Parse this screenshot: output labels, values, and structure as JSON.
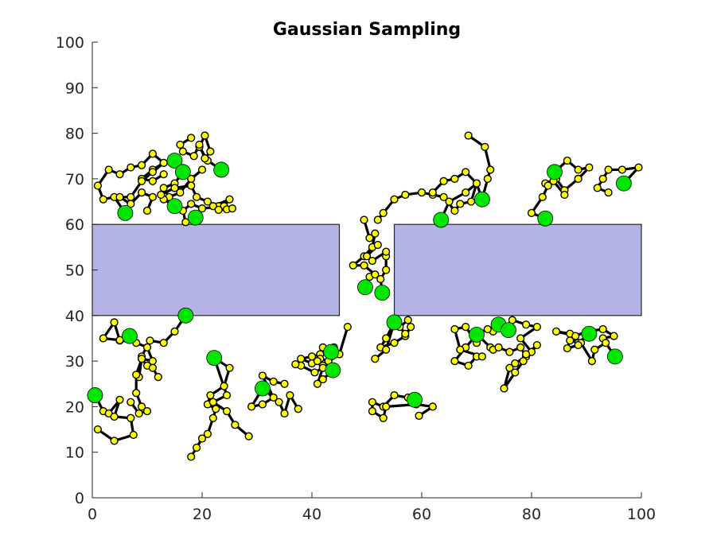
{
  "chart_data": {
    "type": "scatter",
    "title": "Gaussian Sampling",
    "xlabel": "",
    "ylabel": "",
    "xlim": [
      0,
      100
    ],
    "ylim": [
      0,
      100
    ],
    "x_ticks": [
      "0",
      "20",
      "40",
      "60",
      "80",
      "100"
    ],
    "y_ticks": [
      "0",
      "10",
      "20",
      "30",
      "40",
      "50",
      "60",
      "70",
      "80",
      "90",
      "100"
    ],
    "grid": false,
    "colors": {
      "obstacle_fill": "#b3b3e6",
      "obstacle_edge": "#262626",
      "path": "#000000",
      "sample": "#ffff00",
      "seed": "#00e600"
    },
    "obstacles": [
      {
        "x": [
          0,
          45
        ],
        "y": [
          40,
          60
        ]
      },
      {
        "x": [
          55,
          100
        ],
        "y": [
          40,
          60
        ]
      }
    ],
    "seed_points": [
      [
        15,
        74
      ],
      [
        16.5,
        71.5
      ],
      [
        23.5,
        72
      ],
      [
        6,
        62.5
      ],
      [
        15,
        64
      ],
      [
        18.8,
        61.5
      ],
      [
        0.5,
        22.5
      ],
      [
        6.8,
        35.5
      ],
      [
        17,
        40
      ],
      [
        22.2,
        30.7
      ],
      [
        31,
        24
      ],
      [
        43.5,
        32
      ],
      [
        43.8,
        28
      ],
      [
        49.7,
        46.2
      ],
      [
        52.8,
        45
      ],
      [
        55,
        38.5
      ],
      [
        58.7,
        21.5
      ],
      [
        63.5,
        61
      ],
      [
        71,
        65.5
      ],
      [
        70,
        35.8
      ],
      [
        74,
        38
      ],
      [
        75.8,
        36.8
      ],
      [
        84.2,
        71.5
      ],
      [
        82.5,
        61.3
      ],
      [
        96.8,
        69
      ],
      [
        90.5,
        36
      ],
      [
        95.2,
        31
      ]
    ],
    "paths": [
      [
        [
          15,
          74
        ],
        [
          13,
          73.5
        ],
        [
          11,
          72
        ],
        [
          9,
          70
        ],
        [
          11,
          69.5
        ],
        [
          13,
          71
        ]
      ],
      [
        [
          16.5,
          71.5
        ],
        [
          15,
          69
        ],
        [
          13,
          68
        ],
        [
          14,
          66
        ],
        [
          16,
          67
        ],
        [
          18,
          70
        ],
        [
          20,
          72
        ]
      ],
      [
        [
          23.5,
          72
        ],
        [
          21,
          74
        ],
        [
          19.5,
          77
        ],
        [
          20.5,
          79.5
        ],
        [
          21.5,
          76
        ],
        [
          20.5,
          74.5
        ],
        [
          19.5,
          77.5
        ],
        [
          18.5,
          75
        ],
        [
          16.5,
          76
        ],
        [
          16,
          77.5
        ],
        [
          18,
          79
        ]
      ],
      [
        [
          6,
          62.5
        ],
        [
          4,
          66
        ],
        [
          2,
          65.5
        ],
        [
          1,
          68.5
        ],
        [
          3,
          72
        ],
        [
          5,
          71
        ],
        [
          7,
          72.5
        ],
        [
          9,
          73
        ],
        [
          11,
          75.5
        ],
        [
          13,
          73.5
        ],
        [
          11,
          71.5
        ],
        [
          9,
          69.5
        ],
        [
          7,
          66
        ],
        [
          5,
          66
        ],
        [
          7,
          64.5
        ],
        [
          9,
          67
        ],
        [
          11,
          66
        ],
        [
          10,
          63
        ]
      ],
      [
        [
          15,
          64
        ],
        [
          13,
          65.5
        ],
        [
          12.5,
          66.5
        ],
        [
          15,
          68
        ],
        [
          18,
          68.5
        ],
        [
          19,
          66
        ],
        [
          21,
          65
        ],
        [
          23,
          64
        ]
      ],
      [
        [
          18.8,
          61.5
        ],
        [
          17,
          60.5
        ],
        [
          16.5,
          63
        ],
        [
          18,
          64.5
        ],
        [
          20,
          63.5
        ],
        [
          24,
          64
        ],
        [
          25,
          65.5
        ],
        [
          22,
          64
        ],
        [
          23,
          63.2
        ],
        [
          24.5,
          63.3
        ],
        [
          25.5,
          63.5
        ]
      ],
      [
        [
          0.5,
          22.5
        ],
        [
          2,
          19
        ],
        [
          3,
          18.5
        ],
        [
          5,
          21.5
        ],
        [
          4,
          17.8
        ],
        [
          7,
          17.5
        ],
        [
          7.5,
          13.8
        ],
        [
          4,
          12.5
        ],
        [
          1,
          15
        ]
      ],
      [
        [
          6.8,
          35.5
        ],
        [
          5,
          34.5
        ],
        [
          4,
          38.5
        ],
        [
          2,
          35
        ],
        [
          5,
          34.6
        ],
        [
          8,
          34
        ],
        [
          10,
          33
        ],
        [
          11,
          30
        ],
        [
          9,
          30.5
        ],
        [
          10,
          29
        ],
        [
          11,
          28.5
        ],
        [
          12,
          26.5
        ]
      ],
      [
        [
          17,
          40
        ],
        [
          15,
          36.5
        ],
        [
          13,
          34
        ],
        [
          10.5,
          34.5
        ],
        [
          9,
          31
        ],
        [
          8.5,
          26.5
        ],
        [
          9,
          30.5
        ],
        [
          8,
          27
        ],
        [
          8,
          23
        ],
        [
          9,
          20
        ],
        [
          10,
          19
        ],
        [
          8.5,
          18.5
        ],
        [
          7,
          21
        ]
      ],
      [
        [
          22.2,
          30.7
        ],
        [
          25,
          28.5
        ],
        [
          24,
          24.5
        ],
        [
          21.5,
          22.5
        ],
        [
          21,
          20.5
        ],
        [
          22.5,
          19.5
        ],
        [
          22,
          17.5
        ],
        [
          21,
          14
        ],
        [
          20,
          13
        ],
        [
          19,
          11
        ],
        [
          18,
          9
        ]
      ],
      [
        [
          22.2,
          30.7
        ],
        [
          24.5,
          22.5
        ],
        [
          22,
          21
        ],
        [
          24.5,
          19
        ],
        [
          26,
          16
        ],
        [
          28.5,
          13.5
        ]
      ],
      [
        [
          31,
          24
        ],
        [
          34,
          21
        ],
        [
          35,
          18.5
        ],
        [
          36,
          22.5
        ],
        [
          37.5,
          19.5
        ]
      ],
      [
        [
          31,
          24
        ],
        [
          29,
          20
        ],
        [
          31,
          20.5
        ],
        [
          33,
          22
        ],
        [
          31,
          26.8
        ],
        [
          33,
          25.5
        ],
        [
          35,
          25
        ]
      ],
      [
        [
          43.5,
          32
        ],
        [
          41.5,
          31.5
        ],
        [
          40,
          31
        ],
        [
          38,
          30.5
        ],
        [
          40,
          29.5
        ],
        [
          41.5,
          30.5
        ],
        [
          43,
          30
        ],
        [
          44,
          33
        ],
        [
          42,
          33
        ],
        [
          41,
          30
        ],
        [
          42,
          29
        ],
        [
          45,
          31.5
        ],
        [
          46.5,
          37.5
        ]
      ],
      [
        [
          43.8,
          28
        ],
        [
          42,
          26
        ],
        [
          41,
          25
        ],
        [
          42,
          28.5
        ],
        [
          40.5,
          27.5
        ],
        [
          38,
          29
        ],
        [
          37,
          29.3
        ]
      ],
      [
        [
          49.7,
          46.2
        ],
        [
          50.5,
          48.5
        ],
        [
          51.5,
          49
        ],
        [
          49.5,
          51
        ],
        [
          47.5,
          51
        ],
        [
          49.5,
          53
        ],
        [
          51,
          55
        ],
        [
          51.5,
          58
        ],
        [
          50.5,
          57
        ],
        [
          49.5,
          61
        ]
      ],
      [
        [
          52.8,
          45
        ],
        [
          52.5,
          48
        ],
        [
          53.5,
          50
        ],
        [
          53.5,
          53
        ],
        [
          53.5,
          54
        ],
        [
          51,
          52
        ],
        [
          50,
          53
        ],
        [
          52,
          55.5
        ]
      ],
      [
        [
          55,
          38.5
        ],
        [
          53.5,
          35
        ],
        [
          52.5,
          33
        ],
        [
          55,
          34
        ],
        [
          57,
          35.5
        ],
        [
          58,
          37.5
        ],
        [
          57.5,
          39
        ],
        [
          56,
          37.5
        ],
        [
          57,
          36
        ]
      ],
      [
        [
          55,
          38.5
        ],
        [
          53.5,
          32.5
        ],
        [
          51.5,
          30.5
        ]
      ],
      [
        [
          58.7,
          21.5
        ],
        [
          57.5,
          22
        ],
        [
          55,
          22.5
        ],
        [
          53,
          20
        ],
        [
          51,
          21
        ],
        [
          51,
          19
        ],
        [
          53,
          17.5
        ],
        [
          53.5,
          20
        ],
        [
          59,
          20.5
        ],
        [
          62,
          20
        ],
        [
          59.5,
          18
        ]
      ],
      [
        [
          63.5,
          61
        ],
        [
          65,
          65
        ],
        [
          68,
          67
        ],
        [
          70,
          69
        ],
        [
          69,
          65
        ],
        [
          67,
          64.5
        ],
        [
          66,
          63
        ],
        [
          64,
          66
        ],
        [
          62,
          66.5
        ],
        [
          60,
          67
        ],
        [
          57,
          66.5
        ],
        [
          55,
          65.5
        ],
        [
          53,
          62.5
        ],
        [
          52,
          61
        ]
      ],
      [
        [
          71,
          65.5
        ],
        [
          70,
          69
        ],
        [
          68,
          71.5
        ],
        [
          66,
          70
        ],
        [
          64,
          69.5
        ],
        [
          62,
          67
        ]
      ],
      [
        [
          71,
          65.5
        ],
        [
          72,
          70
        ],
        [
          72.5,
          72
        ],
        [
          71.5,
          77
        ],
        [
          68.5,
          79.5
        ]
      ],
      [
        [
          70,
          35.8
        ],
        [
          68,
          33
        ],
        [
          66,
          30
        ],
        [
          68.5,
          29
        ],
        [
          70,
          31
        ],
        [
          71,
          31
        ],
        [
          67,
          32.5
        ],
        [
          66,
          37
        ],
        [
          68,
          37.5
        ],
        [
          70,
          34
        ]
      ],
      [
        [
          74,
          38
        ],
        [
          73,
          36.5
        ],
        [
          72,
          37
        ],
        [
          70,
          36
        ],
        [
          72.5,
          33
        ],
        [
          73,
          32.5
        ],
        [
          74,
          33
        ],
        [
          76,
          32
        ],
        [
          78,
          33
        ],
        [
          79,
          31
        ],
        [
          77,
          29.5
        ],
        [
          76,
          28.5
        ],
        [
          75,
          24
        ],
        [
          77,
          27.5
        ],
        [
          78.5,
          30
        ]
      ],
      [
        [
          75.8,
          36.8
        ],
        [
          76.5,
          39
        ],
        [
          79,
          38
        ],
        [
          81,
          37.5
        ],
        [
          78,
          35
        ],
        [
          80,
          32
        ],
        [
          81,
          33.5
        ],
        [
          79,
          31.5
        ]
      ],
      [
        [
          84.2,
          71.5
        ],
        [
          86.5,
          74
        ],
        [
          88.5,
          72
        ],
        [
          90.5,
          72.5
        ],
        [
          88.5,
          70
        ],
        [
          86,
          67.5
        ],
        [
          84.5,
          70
        ],
        [
          82.5,
          69
        ]
      ],
      [
        [
          82.5,
          61.3
        ],
        [
          80,
          62.5
        ],
        [
          82,
          66
        ],
        [
          83,
          68.5
        ],
        [
          84,
          69.5
        ],
        [
          86,
          66.5
        ]
      ],
      [
        [
          96.8,
          69
        ],
        [
          99.5,
          72.5
        ],
        [
          96.5,
          72
        ],
        [
          94,
          72
        ],
        [
          93,
          70
        ],
        [
          92,
          68
        ],
        [
          94,
          67
        ]
      ],
      [
        [
          90.5,
          36
        ],
        [
          88.5,
          34
        ],
        [
          87,
          36
        ],
        [
          84.5,
          36.5
        ],
        [
          88,
          35.5
        ],
        [
          90,
          36.5
        ],
        [
          93,
          37
        ],
        [
          95,
          35.5
        ],
        [
          93,
          35
        ]
      ],
      [
        [
          95.2,
          31
        ],
        [
          93.5,
          34
        ],
        [
          91.5,
          32.5
        ],
        [
          91,
          30
        ],
        [
          89,
          34
        ],
        [
          87,
          34.5
        ],
        [
          86.5,
          32.8
        ],
        [
          88.5,
          33.5
        ]
      ]
    ]
  }
}
